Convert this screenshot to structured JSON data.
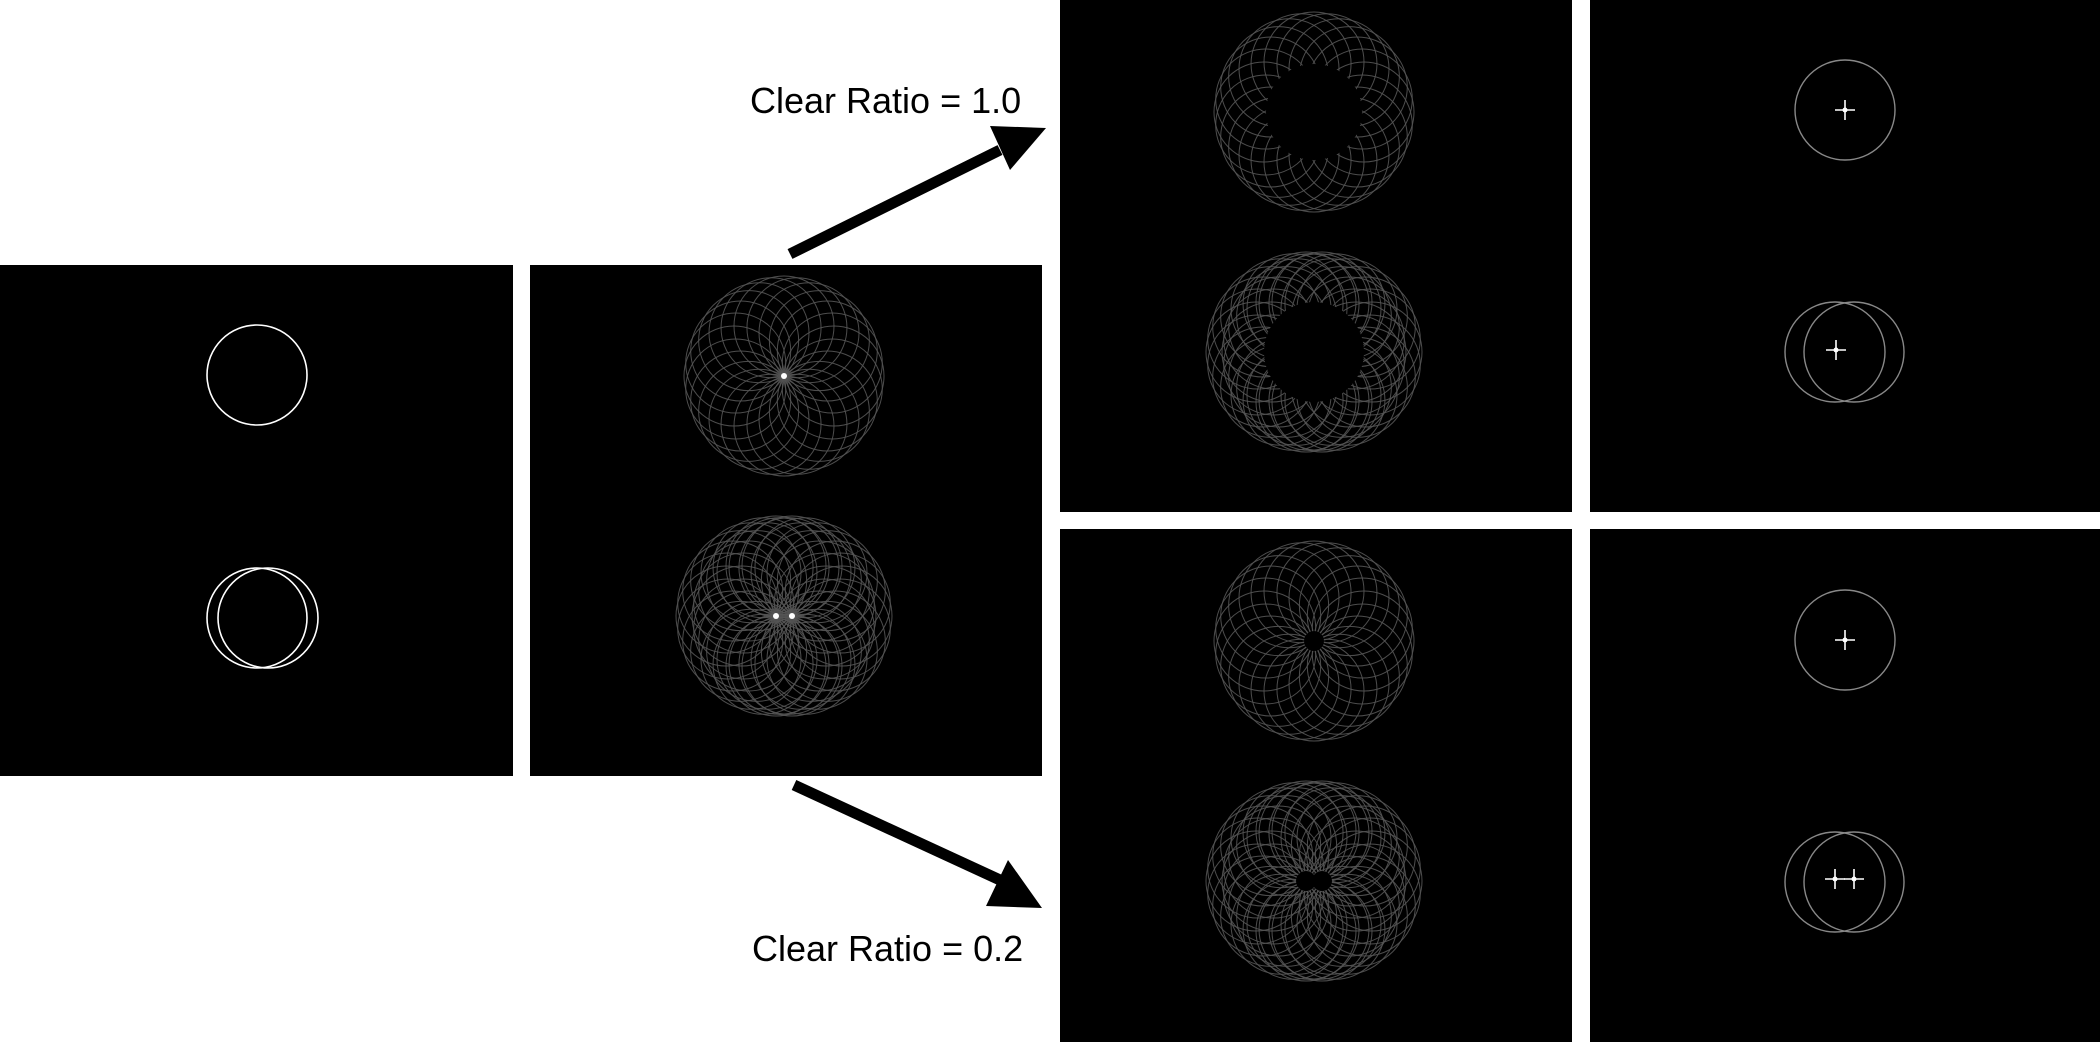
{
  "labels": {
    "top": "Clear Ratio = 1.0",
    "bottom": "Clear Ratio = 0.2"
  },
  "colors": {
    "background": "#ffffff",
    "panel": "#000000",
    "input_stroke": "#ffffff",
    "accum_stroke": "#555555",
    "result_stroke": "#888888",
    "peak": "#ffffff",
    "arrow": "#000000"
  },
  "panels": [
    {
      "id": "input",
      "type": "input"
    },
    {
      "id": "accumulator",
      "type": "accumulator"
    },
    {
      "id": "cleared-1-0",
      "type": "cleared",
      "hole": "large"
    },
    {
      "id": "detected-1-0",
      "type": "detected",
      "peaks": "single"
    },
    {
      "id": "cleared-0-2",
      "type": "cleared",
      "hole": "small"
    },
    {
      "id": "detected-0-2",
      "type": "detected",
      "peaks": "double"
    }
  ]
}
